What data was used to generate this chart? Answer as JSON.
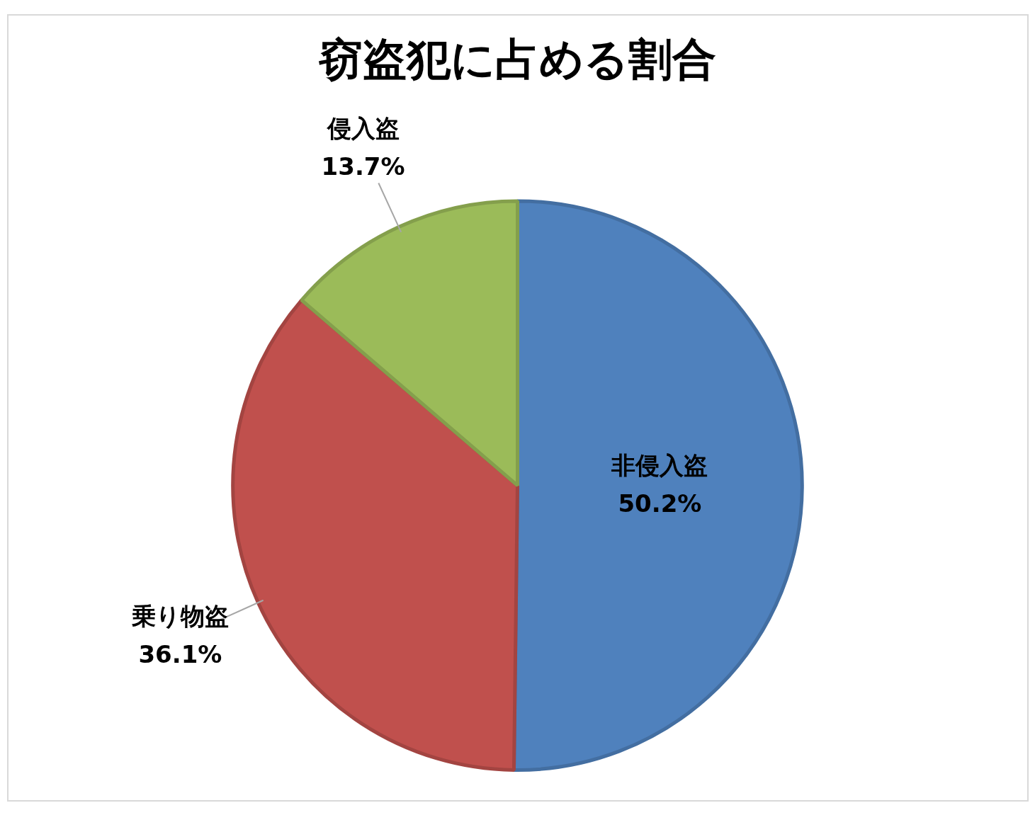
{
  "chart_data": {
    "type": "pie",
    "title": "窃盗犯に占める割合",
    "categories": [
      "非侵入盗",
      "乗り物盗",
      "侵入盗"
    ],
    "values": [
      50.2,
      36.1,
      13.7
    ],
    "value_labels": [
      "50.2%",
      "36.1%",
      "13.7%"
    ],
    "colors": [
      "#4f81bd",
      "#c0504d",
      "#9bbb59"
    ],
    "legend": false
  }
}
